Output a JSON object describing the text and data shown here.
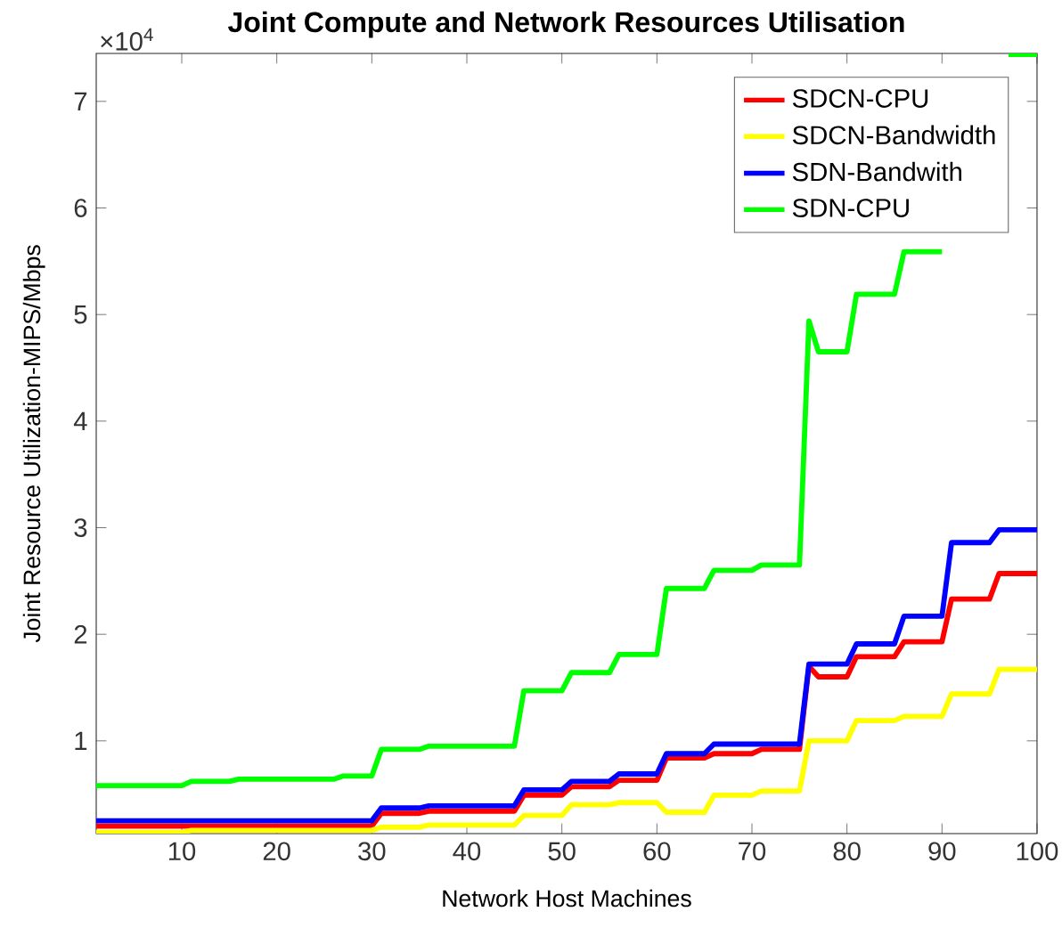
{
  "chart_data": {
    "type": "line",
    "title": "Joint Compute and Network Resources Utilisation",
    "xlabel": "Network Host Machines",
    "ylabel": "Joint Resource Utilization-MIPS/Mbps",
    "annotations": [
      "×10$^{4}$"
    ],
    "xlim": [
      1,
      100
    ],
    "xticks": [
      10,
      20,
      30,
      40,
      50,
      60,
      70,
      80,
      90,
      100
    ],
    "ylim": [
      0.13,
      7.45
    ],
    "yticks": [
      1,
      2,
      3,
      4,
      5,
      6,
      7
    ],
    "legend": "top right",
    "marker": "none",
    "line_style": "solid",
    "grid": false,
    "series": [
      {
        "name": "SDCN-CPU",
        "color": "#ff0000",
        "x": [
          1,
          30,
          31,
          35,
          36,
          45,
          46,
          50,
          51,
          55,
          56,
          60,
          61,
          65,
          66,
          70,
          71,
          75,
          76,
          77,
          80,
          81,
          85,
          86,
          90,
          91,
          95,
          96,
          100
        ],
        "values": [
          0.2,
          0.2,
          0.32,
          0.32,
          0.34,
          0.34,
          0.49,
          0.49,
          0.57,
          0.57,
          0.63,
          0.63,
          0.84,
          0.84,
          0.88,
          0.88,
          0.92,
          0.92,
          1.7,
          1.6,
          1.6,
          1.79,
          1.79,
          1.93,
          1.93,
          2.33,
          2.33,
          2.57,
          2.57
        ]
      },
      {
        "name": "SDCN-Bandwidth",
        "color": "#ffff00",
        "x": [
          1,
          10,
          11,
          30,
          31,
          35,
          36,
          45,
          46,
          50,
          51,
          55,
          56,
          60,
          61,
          65,
          66,
          70,
          71,
          75,
          76,
          80,
          81,
          85,
          86,
          90,
          91,
          95,
          96,
          100
        ],
        "values": [
          0.14,
          0.14,
          0.16,
          0.16,
          0.19,
          0.19,
          0.21,
          0.21,
          0.3,
          0.3,
          0.4,
          0.4,
          0.42,
          0.42,
          0.33,
          0.33,
          0.49,
          0.49,
          0.53,
          0.53,
          1.0,
          1.0,
          1.19,
          1.19,
          1.23,
          1.23,
          1.44,
          1.44,
          1.67,
          1.67
        ]
      },
      {
        "name": "SDN-Bandwith",
        "color": "#0000ff",
        "x": [
          1,
          30,
          31,
          35,
          36,
          45,
          46,
          50,
          51,
          55,
          56,
          60,
          61,
          65,
          66,
          75,
          76,
          80,
          81,
          85,
          86,
          90,
          91,
          95,
          96,
          100
        ],
        "values": [
          0.25,
          0.25,
          0.37,
          0.37,
          0.39,
          0.39,
          0.54,
          0.54,
          0.62,
          0.62,
          0.69,
          0.69,
          0.88,
          0.88,
          0.97,
          0.97,
          1.72,
          1.72,
          1.91,
          1.91,
          2.17,
          2.17,
          2.86,
          2.86,
          2.98,
          2.98
        ]
      },
      {
        "name": "SDN-CPU",
        "color": "#00ff00",
        "x": [
          1,
          10,
          11,
          15,
          16,
          26,
          27,
          30,
          31,
          35,
          36,
          45,
          46,
          50,
          51,
          55,
          56,
          60,
          61,
          65,
          66,
          70,
          71,
          75,
          76,
          77,
          80,
          81,
          85,
          86,
          90,
          93,
          97,
          100
        ],
        "values": [
          0.58,
          0.58,
          0.62,
          0.62,
          0.64,
          0.64,
          0.67,
          0.67,
          0.92,
          0.92,
          0.95,
          0.95,
          1.47,
          1.47,
          1.64,
          1.64,
          1.81,
          1.81,
          2.43,
          2.43,
          2.6,
          2.6,
          2.65,
          2.65,
          4.94,
          4.65,
          4.65,
          5.19,
          5.19,
          5.59,
          5.59,
          null,
          7.44,
          7.44
        ]
      }
    ]
  }
}
